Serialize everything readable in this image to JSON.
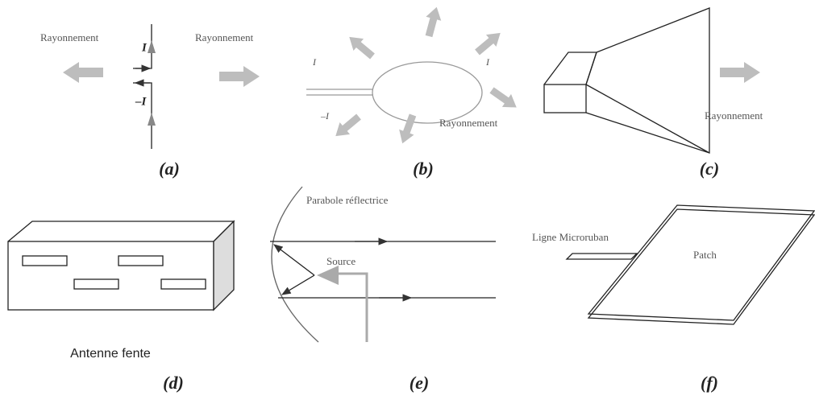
{
  "panels": [
    {
      "caption": "(a)",
      "labels": [
        "Rayonnement",
        "I",
        "Rayonnement",
        "–I"
      ]
    },
    {
      "caption": "(b)",
      "labels": [
        "I",
        "–I",
        "I",
        "Rayonnement"
      ]
    },
    {
      "caption": "(c)",
      "labels": [
        "Rayonnement"
      ]
    },
    {
      "caption": "(d)",
      "labels": [
        "Antenne fente"
      ]
    },
    {
      "caption": "(e)",
      "labels": [
        "Parabole réflectrice",
        "Source"
      ]
    },
    {
      "caption": "(f)",
      "labels": [
        "Ligne Microruban",
        "Patch"
      ]
    }
  ]
}
